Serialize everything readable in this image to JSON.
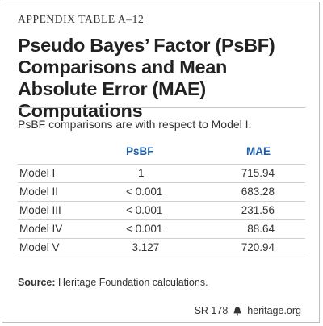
{
  "appendix_label": "APPENDIX TABLE A–12",
  "title": "Pseudo Bayes’ Factor (PsBF) Comparisons and Mean Absolute Error (MAE) Computations",
  "subtitle": "PsBF comparisons are with respect to Model I.",
  "table": {
    "headers": [
      "",
      "PsBF",
      "MAE"
    ],
    "rows": [
      {
        "model": "Model I",
        "psbf": "    1",
        "mae": "715.94"
      },
      {
        "model": "Model II",
        "psbf": "< 0.001",
        "mae": "683.28"
      },
      {
        "model": "Model III",
        "psbf": "< 0.001",
        "mae": "231.56"
      },
      {
        "model": "Model IV",
        "psbf": "< 0.001",
        "mae": "88.64"
      },
      {
        "model": "Model V",
        "psbf": "  3.127",
        "mae": "720.94"
      }
    ]
  },
  "source_label": "Source:",
  "source_text": " Heritage Foundation calculations.",
  "footer": {
    "report": "SR 178",
    "site": "heritage.org",
    "icon": "liberty-bell-icon"
  }
}
